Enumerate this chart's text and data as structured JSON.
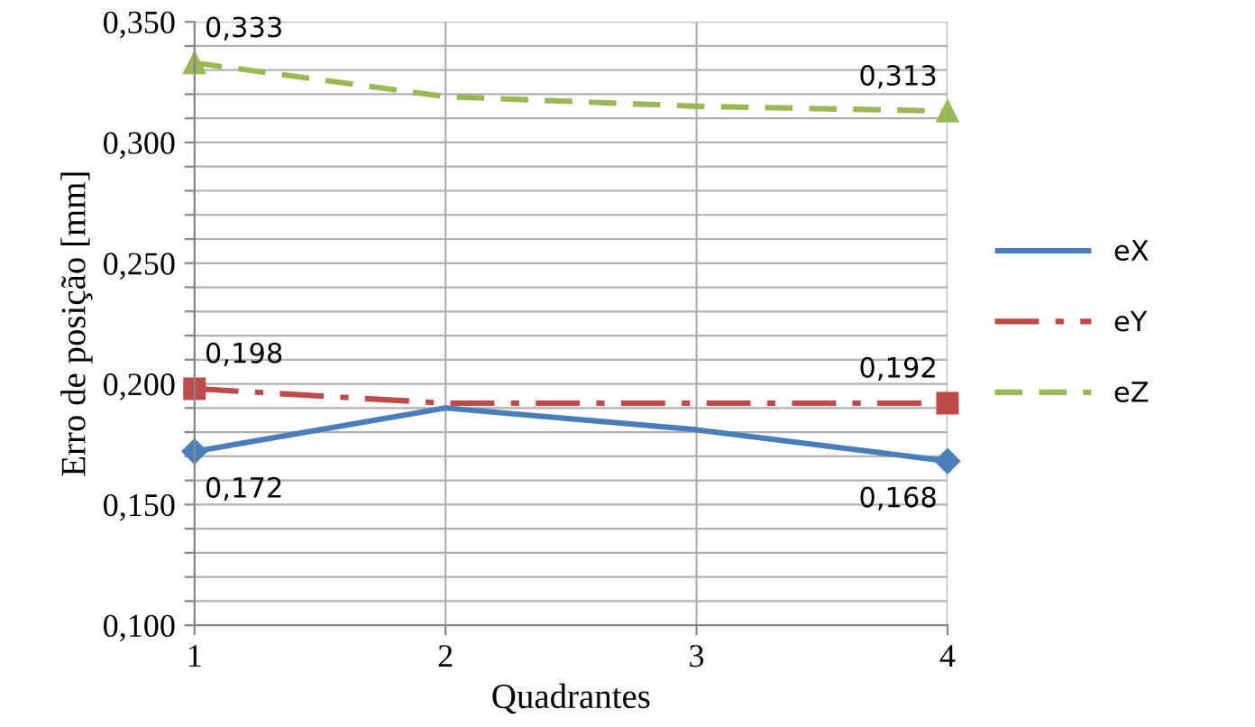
{
  "chart_data": {
    "type": "line",
    "xlabel": "Quadrantes",
    "ylabel": "Erro de posição [mm]",
    "x": [
      1,
      2,
      3,
      4
    ],
    "xlim": [
      1,
      4
    ],
    "xticks": [
      1,
      2,
      3,
      4
    ],
    "ylim": [
      0.1,
      0.35
    ],
    "yticks": [
      {
        "value": 0.1,
        "label": "0,100"
      },
      {
        "value": 0.11,
        "label": null
      },
      {
        "value": 0.12,
        "label": null
      },
      {
        "value": 0.13,
        "label": null
      },
      {
        "value": 0.14,
        "label": null
      },
      {
        "value": 0.15,
        "label": "0,150"
      },
      {
        "value": 0.16,
        "label": null
      },
      {
        "value": 0.17,
        "label": null
      },
      {
        "value": 0.18,
        "label": null
      },
      {
        "value": 0.19,
        "label": null
      },
      {
        "value": 0.2,
        "label": "0,200"
      },
      {
        "value": 0.21,
        "label": null
      },
      {
        "value": 0.22,
        "label": null
      },
      {
        "value": 0.23,
        "label": null
      },
      {
        "value": 0.24,
        "label": null
      },
      {
        "value": 0.25,
        "label": "0,250"
      },
      {
        "value": 0.26,
        "label": null
      },
      {
        "value": 0.27,
        "label": null
      },
      {
        "value": 0.28,
        "label": null
      },
      {
        "value": 0.29,
        "label": null
      },
      {
        "value": 0.3,
        "label": "0,300"
      },
      {
        "value": 0.31,
        "label": null
      },
      {
        "value": 0.32,
        "label": null
      },
      {
        "value": 0.33,
        "label": null
      },
      {
        "value": 0.34,
        "label": null
      },
      {
        "value": 0.35,
        "label": "0,350"
      }
    ],
    "grid": true,
    "legend": "right",
    "series": [
      {
        "name": "eX",
        "color": "#4a7ebb",
        "values": [
          0.172,
          0.19,
          0.181,
          0.168
        ],
        "value_labels": [
          "0,172",
          null,
          null,
          "0,168"
        ],
        "marker": "diamond",
        "line_style": "solid"
      },
      {
        "name": "eY",
        "color": "#be4b48",
        "values": [
          0.198,
          0.192,
          0.192,
          0.192
        ],
        "value_labels": [
          "0,198",
          null,
          null,
          "0,192"
        ],
        "marker": "square",
        "line_style": "dashdot"
      },
      {
        "name": "eZ",
        "color": "#98b954",
        "values": [
          0.333,
          0.319,
          0.315,
          0.313
        ],
        "value_labels": [
          "0,333",
          null,
          null,
          "0,313"
        ],
        "marker": "triangle",
        "line_style": "dashed"
      }
    ]
  }
}
